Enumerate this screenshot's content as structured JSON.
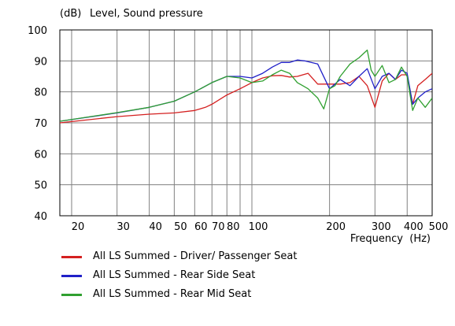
{
  "chart_data": {
    "type": "line",
    "title": "Level, Sound pressure",
    "ylabel": "(dB)",
    "xlabel": "Frequency  (Hz)",
    "xscale": "log",
    "xlim": [
      18,
      500
    ],
    "ylim": [
      40,
      100
    ],
    "yticks": [
      40,
      50,
      60,
      70,
      80,
      90,
      100
    ],
    "xticks": [
      {
        "value": 20,
        "label": "20"
      },
      {
        "value": 30,
        "label": "30"
      },
      {
        "value": 40,
        "label": "40"
      },
      {
        "value": 50,
        "label": "50"
      },
      {
        "value": 60,
        "label": "60"
      },
      {
        "value": 70,
        "label": "70"
      },
      {
        "value": 80,
        "label": "80"
      },
      {
        "value": 100,
        "label": "100"
      },
      {
        "value": 200,
        "label": "200"
      },
      {
        "value": 300,
        "label": "300"
      },
      {
        "value": 400,
        "label": "400"
      },
      {
        "value": 500,
        "label": "500"
      }
    ],
    "grid": true,
    "legend_position": "bottom",
    "series": [
      {
        "name": "All LS Summed - Driver/ Passenger Seat",
        "color": "#d42020",
        "x": [
          18,
          30,
          40,
          50,
          60,
          66,
          70,
          80,
          90,
          100,
          110,
          120,
          130,
          140,
          150,
          165,
          180,
          200,
          220,
          240,
          260,
          280,
          300,
          320,
          340,
          360,
          380,
          400,
          420,
          440,
          470,
          500
        ],
        "y": [
          70,
          72,
          72.8,
          73.2,
          74,
          75,
          76,
          79,
          81,
          83,
          84.5,
          85.2,
          85.3,
          84.8,
          85,
          86,
          82.5,
          82.5,
          82.5,
          83,
          85,
          82,
          75,
          83.5,
          86,
          84,
          85.5,
          85.5,
          76,
          82,
          84,
          86
        ]
      },
      {
        "name": "All LS Summed - Rear Side Seat",
        "color": "#2020c8",
        "x": [
          18,
          30,
          40,
          50,
          60,
          70,
          80,
          90,
          100,
          110,
          120,
          130,
          140,
          150,
          160,
          180,
          200,
          220,
          240,
          260,
          280,
          300,
          320,
          340,
          360,
          380,
          400,
          420,
          440,
          470,
          500
        ],
        "y": [
          70.5,
          73.2,
          75,
          77,
          80,
          83,
          85,
          85,
          84.5,
          86,
          88,
          89.5,
          89.5,
          90.3,
          90,
          89,
          81,
          84,
          82,
          85,
          87.5,
          81,
          85,
          86,
          84,
          87,
          86,
          76,
          78,
          80,
          81
        ]
      },
      {
        "name": "All LS Summed - Rear Mid Seat",
        "color": "#30a030",
        "x": [
          18,
          30,
          40,
          50,
          60,
          70,
          80,
          90,
          100,
          110,
          120,
          130,
          140,
          150,
          165,
          180,
          190,
          200,
          210,
          220,
          240,
          260,
          280,
          290,
          300,
          320,
          340,
          360,
          380,
          400,
          420,
          440,
          470,
          500
        ],
        "y": [
          70.5,
          73.3,
          75,
          77,
          80,
          83,
          85,
          84.5,
          83,
          83.5,
          85.5,
          87,
          86,
          83,
          81,
          78,
          74.5,
          81,
          82,
          85,
          89,
          91,
          93.5,
          87,
          85,
          88.5,
          83,
          84,
          88,
          85,
          74,
          78,
          75,
          78
        ]
      }
    ]
  }
}
